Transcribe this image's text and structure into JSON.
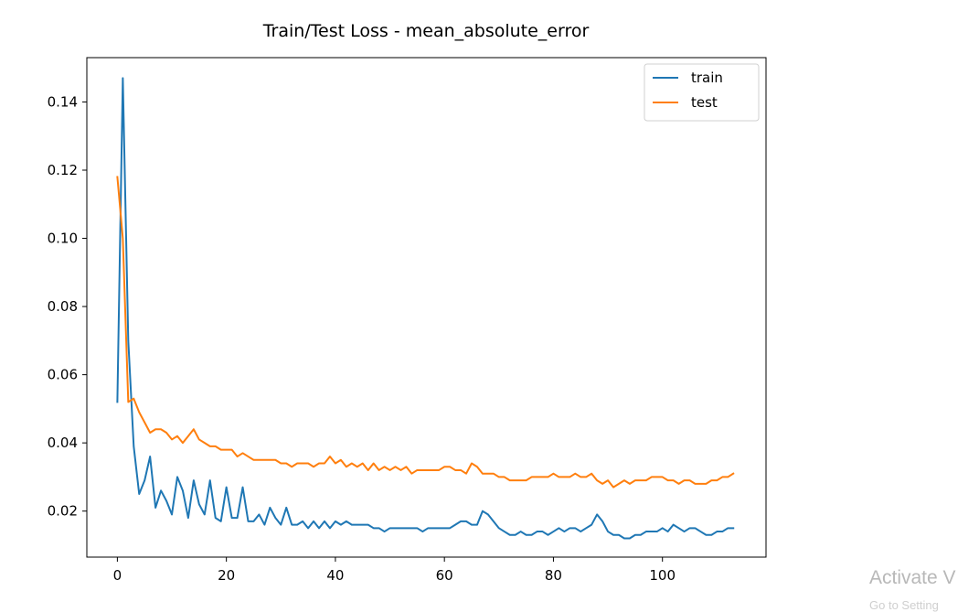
{
  "chart_data": {
    "type": "line",
    "title": "Train/Test Loss - mean_absolute_error",
    "xlabel": "",
    "ylabel": "",
    "xlim": [
      -5.6,
      119
    ],
    "ylim": [
      0.0065,
      0.153
    ],
    "xticks": [
      0,
      20,
      40,
      60,
      80,
      100
    ],
    "yticks": [
      0.02,
      0.04,
      0.06,
      0.08,
      0.1,
      0.12,
      0.14
    ],
    "ytick_labels": [
      "0.02",
      "0.04",
      "0.06",
      "0.08",
      "0.10",
      "0.12",
      "0.14"
    ],
    "grid": false,
    "legend_position": "top-right",
    "series": [
      {
        "name": "train",
        "color": "#1f77b4",
        "x": [
          0,
          1,
          2,
          3,
          4,
          5,
          6,
          7,
          8,
          9,
          10,
          11,
          12,
          13,
          14,
          15,
          16,
          17,
          18,
          19,
          20,
          21,
          22,
          23,
          24,
          25,
          26,
          27,
          28,
          29,
          30,
          31,
          32,
          33,
          34,
          35,
          36,
          37,
          38,
          39,
          40,
          41,
          42,
          43,
          44,
          45,
          46,
          47,
          48,
          49,
          50,
          51,
          52,
          53,
          54,
          55,
          56,
          57,
          58,
          59,
          60,
          61,
          62,
          63,
          64,
          65,
          66,
          67,
          68,
          69,
          70,
          71,
          72,
          73,
          74,
          75,
          76,
          77,
          78,
          79,
          80,
          81,
          82,
          83,
          84,
          85,
          86,
          87,
          88,
          89,
          90,
          91,
          92,
          93,
          94,
          95,
          96,
          97,
          98,
          99,
          100,
          101,
          102,
          103,
          104,
          105,
          106,
          107,
          108,
          109,
          110,
          111,
          112,
          113
        ],
        "y": [
          0.052,
          0.147,
          0.07,
          0.039,
          0.025,
          0.029,
          0.036,
          0.021,
          0.026,
          0.023,
          0.019,
          0.03,
          0.026,
          0.018,
          0.029,
          0.022,
          0.019,
          0.029,
          0.018,
          0.017,
          0.027,
          0.018,
          0.018,
          0.027,
          0.017,
          0.017,
          0.019,
          0.016,
          0.021,
          0.018,
          0.016,
          0.021,
          0.016,
          0.016,
          0.017,
          0.015,
          0.017,
          0.015,
          0.017,
          0.015,
          0.017,
          0.016,
          0.017,
          0.016,
          0.016,
          0.016,
          0.016,
          0.015,
          0.015,
          0.014,
          0.015,
          0.015,
          0.015,
          0.015,
          0.015,
          0.015,
          0.014,
          0.015,
          0.015,
          0.015,
          0.015,
          0.015,
          0.016,
          0.017,
          0.017,
          0.016,
          0.016,
          0.02,
          0.019,
          0.017,
          0.015,
          0.014,
          0.013,
          0.013,
          0.014,
          0.013,
          0.013,
          0.014,
          0.014,
          0.013,
          0.014,
          0.015,
          0.014,
          0.015,
          0.015,
          0.014,
          0.015,
          0.016,
          0.019,
          0.017,
          0.014,
          0.013,
          0.013,
          0.012,
          0.012,
          0.013,
          0.013,
          0.014,
          0.014,
          0.014,
          0.015,
          0.014,
          0.016,
          0.015,
          0.014,
          0.015,
          0.015,
          0.014,
          0.013,
          0.013,
          0.014,
          0.014,
          0.015,
          0.015
        ]
      },
      {
        "name": "test",
        "color": "#ff7f0e",
        "x": [
          0,
          1,
          2,
          3,
          4,
          5,
          6,
          7,
          8,
          9,
          10,
          11,
          12,
          13,
          14,
          15,
          16,
          17,
          18,
          19,
          20,
          21,
          22,
          23,
          24,
          25,
          26,
          27,
          28,
          29,
          30,
          31,
          32,
          33,
          34,
          35,
          36,
          37,
          38,
          39,
          40,
          41,
          42,
          43,
          44,
          45,
          46,
          47,
          48,
          49,
          50,
          51,
          52,
          53,
          54,
          55,
          56,
          57,
          58,
          59,
          60,
          61,
          62,
          63,
          64,
          65,
          66,
          67,
          68,
          69,
          70,
          71,
          72,
          73,
          74,
          75,
          76,
          77,
          78,
          79,
          80,
          81,
          82,
          83,
          84,
          85,
          86,
          87,
          88,
          89,
          90,
          91,
          92,
          93,
          94,
          95,
          96,
          97,
          98,
          99,
          100,
          101,
          102,
          103,
          104,
          105,
          106,
          107,
          108,
          109,
          110,
          111,
          112,
          113
        ],
        "y": [
          0.118,
          0.1,
          0.052,
          0.053,
          0.049,
          0.046,
          0.043,
          0.044,
          0.044,
          0.043,
          0.041,
          0.042,
          0.04,
          0.042,
          0.044,
          0.041,
          0.04,
          0.039,
          0.039,
          0.038,
          0.038,
          0.038,
          0.036,
          0.037,
          0.036,
          0.035,
          0.035,
          0.035,
          0.035,
          0.035,
          0.034,
          0.034,
          0.033,
          0.034,
          0.034,
          0.034,
          0.033,
          0.034,
          0.034,
          0.036,
          0.034,
          0.035,
          0.033,
          0.034,
          0.033,
          0.034,
          0.032,
          0.034,
          0.032,
          0.033,
          0.032,
          0.033,
          0.032,
          0.033,
          0.031,
          0.032,
          0.032,
          0.032,
          0.032,
          0.032,
          0.033,
          0.033,
          0.032,
          0.032,
          0.031,
          0.034,
          0.033,
          0.031,
          0.031,
          0.031,
          0.03,
          0.03,
          0.029,
          0.029,
          0.029,
          0.029,
          0.03,
          0.03,
          0.03,
          0.03,
          0.031,
          0.03,
          0.03,
          0.03,
          0.031,
          0.03,
          0.03,
          0.031,
          0.029,
          0.028,
          0.029,
          0.027,
          0.028,
          0.029,
          0.028,
          0.029,
          0.029,
          0.029,
          0.03,
          0.03,
          0.03,
          0.029,
          0.029,
          0.028,
          0.029,
          0.029,
          0.028,
          0.028,
          0.028,
          0.029,
          0.029,
          0.03,
          0.03,
          0.031
        ]
      }
    ]
  },
  "watermark": {
    "line1": "Activate V",
    "line2": "Go to Setting"
  }
}
